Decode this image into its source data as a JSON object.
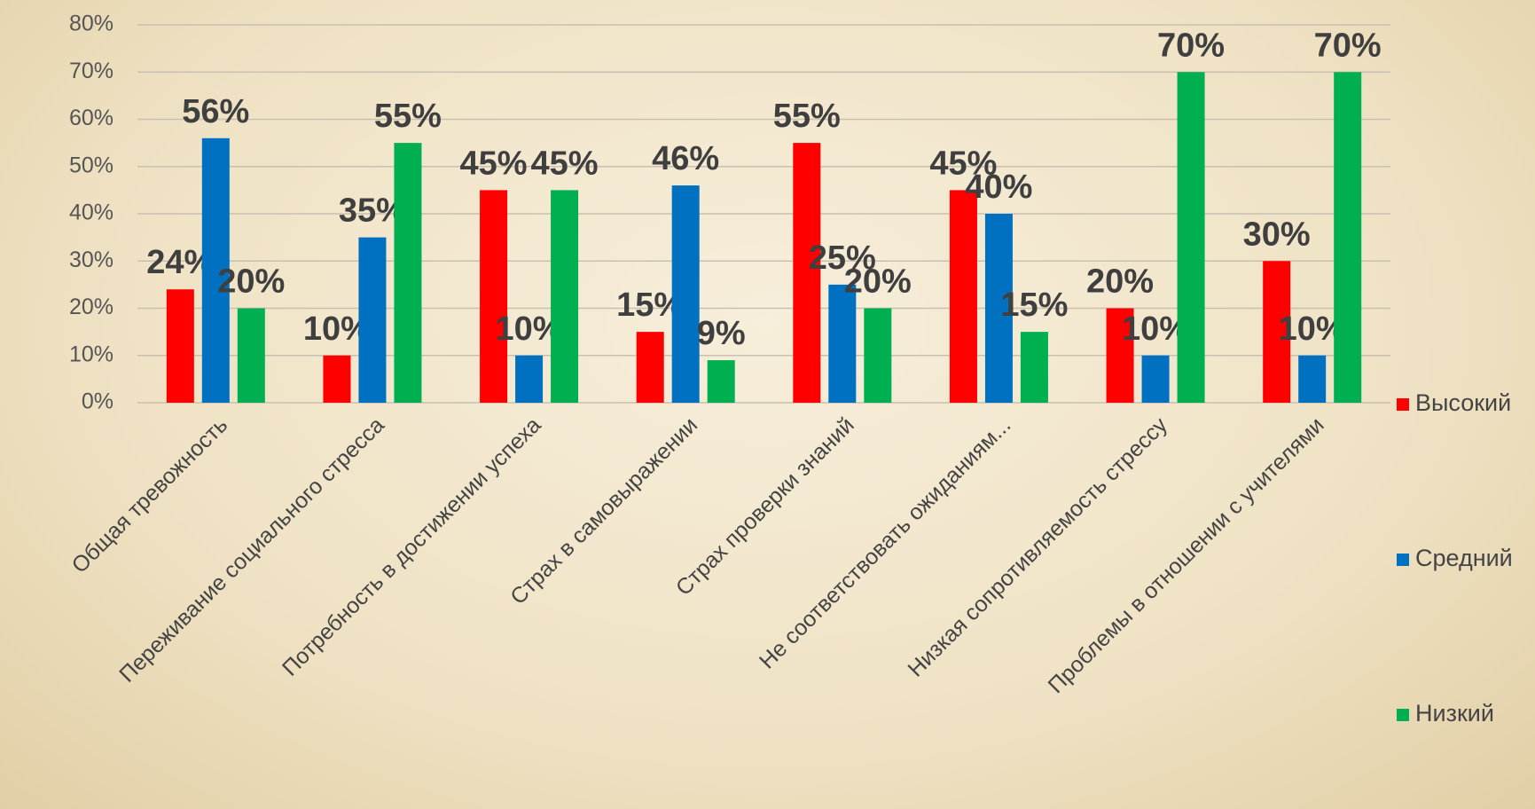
{
  "chart_data": {
    "type": "bar",
    "categories": [
      "Общая тревожность",
      "Переживание социального стресса",
      "Потребность в достижении успеха",
      "Страх в самовыражении",
      "Страх проверки знаний",
      "Не соответствовать ожиданиям...",
      "Низкая сопротивляемость стрессу",
      "Проблемы в отношении с учителями"
    ],
    "series": [
      {
        "name": "Высокий",
        "color": "#ff0000",
        "values": [
          24,
          10,
          45,
          15,
          55,
          45,
          20,
          30
        ],
        "value_labels": [
          "24%",
          "10%",
          "45%",
          "15%",
          "55%",
          "45%",
          "20%",
          "30%"
        ]
      },
      {
        "name": "Средний",
        "color": "#0070c0",
        "values": [
          56,
          35,
          10,
          46,
          25,
          40,
          10,
          10
        ],
        "value_labels": [
          "56%",
          "35%",
          "10%",
          "46%",
          "25%",
          "40%",
          "10%",
          "10%"
        ]
      },
      {
        "name": "Низкий",
        "color": "#00b050",
        "values": [
          20,
          55,
          45,
          9,
          20,
          15,
          70,
          70
        ],
        "value_labels": [
          "20%",
          "55%",
          "45%",
          "9%",
          "20%",
          "15%",
          "70%",
          "70%"
        ]
      }
    ],
    "ylim": [
      0,
      80
    ],
    "yticks": [
      {
        "value": 0,
        "label": "0%"
      },
      {
        "value": 10,
        "label": "10%"
      },
      {
        "value": 20,
        "label": "20%"
      },
      {
        "value": 30,
        "label": "30%"
      },
      {
        "value": 40,
        "label": "40%"
      },
      {
        "value": 50,
        "label": "50%"
      },
      {
        "value": 60,
        "label": "60%"
      },
      {
        "value": 70,
        "label": "70%"
      },
      {
        "value": 80,
        "label": "80%"
      }
    ],
    "grid": true,
    "legend": "right"
  }
}
